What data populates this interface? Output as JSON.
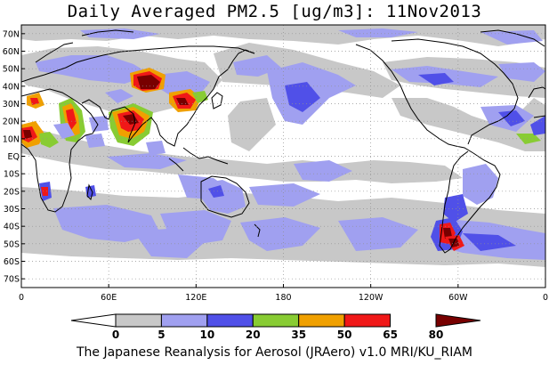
{
  "title": "Daily Averaged PM2.5 [ug/m3]: 11Nov2013",
  "footer": "The Japanese Reanalysis for Aerosol (JRAero) v1.0 MRI/KU_RIAM",
  "map": {
    "projection": "equirectangular",
    "lon_range": [
      0,
      360
    ],
    "lat_range": [
      -75,
      75
    ],
    "grid": "dotted",
    "lat_ticks": [
      {
        "lat": 70,
        "label": "70N"
      },
      {
        "lat": 60,
        "label": "60N"
      },
      {
        "lat": 50,
        "label": "50N"
      },
      {
        "lat": 40,
        "label": "40N"
      },
      {
        "lat": 30,
        "label": "30N"
      },
      {
        "lat": 20,
        "label": "20N"
      },
      {
        "lat": 10,
        "label": "10N"
      },
      {
        "lat": 0,
        "label": "EQ"
      },
      {
        "lat": -10,
        "label": "10S"
      },
      {
        "lat": -20,
        "label": "20S"
      },
      {
        "lat": -30,
        "label": "30S"
      },
      {
        "lat": -40,
        "label": "40S"
      },
      {
        "lat": -50,
        "label": "50S"
      },
      {
        "lat": -60,
        "label": "60S"
      },
      {
        "lat": -70,
        "label": "70S"
      }
    ],
    "lon_ticks": [
      {
        "lon": 0,
        "label": "0"
      },
      {
        "lon": 60,
        "label": "60E"
      },
      {
        "lon": 120,
        "label": "120E"
      },
      {
        "lon": 180,
        "label": "180"
      },
      {
        "lon": 240,
        "label": "120W"
      },
      {
        "lon": 300,
        "label": "60W"
      },
      {
        "lon": 360,
        "label": "0"
      }
    ]
  },
  "colorbar": {
    "levels": [
      "0",
      "5",
      "10",
      "20",
      "35",
      "50",
      "65",
      "80"
    ],
    "colors": [
      "#ffffff",
      "#c8c8c8",
      "#a0a0f0",
      "#5050e8",
      "#88cc33",
      "#f0a000",
      "#f01818",
      "#780000"
    ]
  },
  "colors": {
    "lt5": "#ffffff",
    "c5_10": "#c8c8c8",
    "c10_20": "#a0a0f0",
    "c20_35": "#5050e8",
    "c35_50": "#88cc33",
    "c50_65": "#f0a000",
    "c65_80": "#f01818",
    "gt80": "#780000"
  }
}
